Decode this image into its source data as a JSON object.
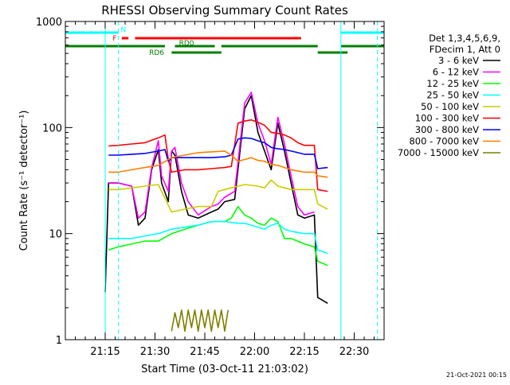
{
  "chart_data": {
    "type": "line",
    "title": "RHESSI Observing Summary Count Rates",
    "xlabel": "Start Time (03-Oct-11 21:03:02)",
    "ylabel": "Count Rate (s⁻¹ detector⁻¹)",
    "y_scale": "log",
    "ylim": [
      1,
      1000
    ],
    "xlim_minutes": [
      0,
      96
    ],
    "y_tick_labels": [
      "1",
      "10",
      "100",
      "1000"
    ],
    "x_ticks": [
      {
        "label": "21:15",
        "min": 12
      },
      {
        "label": "21:30",
        "min": 27
      },
      {
        "label": "21:45",
        "min": 42
      },
      {
        "label": "22:00",
        "min": 57
      },
      {
        "label": "22:15",
        "min": 72
      },
      {
        "label": "22:30",
        "min": 87
      }
    ],
    "legend_header": [
      "Det 1,3,4,5,6,9,",
      "FDecim 1, Att 0"
    ],
    "footer_date": "21-Oct-2021 00:15",
    "night_boundaries_min": [
      12,
      83
    ],
    "saa_boundaries_min": [
      16,
      94
    ],
    "flag_bars": [
      {
        "label": "N",
        "color": "#00ffff",
        "segments": [
          [
            0,
            16
          ],
          [
            83,
            96
          ]
        ]
      },
      {
        "label": "F",
        "color": "#ff0000",
        "segments": [
          [
            17,
            19
          ],
          [
            21,
            71
          ]
        ]
      },
      {
        "label": "RD0",
        "color": "#007f00",
        "segments": [
          [
            0,
            30
          ],
          [
            33,
            45
          ],
          [
            47,
            76
          ],
          [
            83,
            96
          ]
        ]
      },
      {
        "label": "RD6",
        "color": "#007f00",
        "segments": [
          [
            32,
            47
          ],
          [
            76,
            85
          ]
        ]
      }
    ],
    "series": [
      {
        "name": "3 - 6 keV",
        "color": "#000000",
        "points": [
          [
            12,
            2.8
          ],
          [
            13,
            30
          ],
          [
            16,
            30
          ],
          [
            20,
            28
          ],
          [
            22,
            12
          ],
          [
            24,
            14
          ],
          [
            26,
            40
          ],
          [
            28,
            62
          ],
          [
            29,
            30
          ],
          [
            31,
            20
          ],
          [
            32,
            60
          ],
          [
            33,
            55
          ],
          [
            35,
            25
          ],
          [
            37,
            15
          ],
          [
            40,
            14
          ],
          [
            44,
            16
          ],
          [
            46,
            17
          ],
          [
            48,
            20
          ],
          [
            51,
            21
          ],
          [
            54,
            150
          ],
          [
            56,
            200
          ],
          [
            58,
            90
          ],
          [
            60,
            60
          ],
          [
            62,
            40
          ],
          [
            64,
            110
          ],
          [
            66,
            60
          ],
          [
            68,
            30
          ],
          [
            70,
            15
          ],
          [
            72,
            14
          ],
          [
            75,
            15
          ],
          [
            76,
            2.5
          ],
          [
            79,
            2.2
          ]
        ]
      },
      {
        "name": "6 - 12 keV",
        "color": "#ff00ff",
        "points": [
          [
            13,
            30
          ],
          [
            16,
            30
          ],
          [
            20,
            28
          ],
          [
            22,
            14
          ],
          [
            24,
            16
          ],
          [
            26,
            42
          ],
          [
            28,
            75
          ],
          [
            29,
            35
          ],
          [
            31,
            25
          ],
          [
            32,
            60
          ],
          [
            33,
            65
          ],
          [
            35,
            30
          ],
          [
            37,
            20
          ],
          [
            40,
            15
          ],
          [
            44,
            18
          ],
          [
            46,
            19
          ],
          [
            48,
            22
          ],
          [
            51,
            25
          ],
          [
            54,
            170
          ],
          [
            56,
            215
          ],
          [
            58,
            110
          ],
          [
            60,
            75
          ],
          [
            62,
            45
          ],
          [
            64,
            125
          ],
          [
            66,
            70
          ],
          [
            68,
            35
          ],
          [
            70,
            18
          ],
          [
            72,
            15
          ],
          [
            75,
            16
          ]
        ]
      },
      {
        "name": "12 - 25 keV",
        "color": "#00ff00",
        "points": [
          [
            13,
            7
          ],
          [
            16,
            7.5
          ],
          [
            20,
            8
          ],
          [
            24,
            8.5
          ],
          [
            28,
            8.5
          ],
          [
            32,
            10
          ],
          [
            36,
            11
          ],
          [
            40,
            12
          ],
          [
            44,
            13
          ],
          [
            48,
            13
          ],
          [
            50,
            14
          ],
          [
            52,
            18
          ],
          [
            54,
            15
          ],
          [
            56,
            14
          ],
          [
            58,
            12.5
          ],
          [
            60,
            12
          ],
          [
            62,
            14
          ],
          [
            64,
            13
          ],
          [
            66,
            9
          ],
          [
            68,
            9
          ],
          [
            72,
            8
          ],
          [
            75,
            7.5
          ],
          [
            76,
            5.5
          ],
          [
            79,
            5
          ]
        ]
      },
      {
        "name": "25 - 50 keV",
        "color": "#00ffff",
        "points": [
          [
            13,
            9
          ],
          [
            16,
            9
          ],
          [
            20,
            9
          ],
          [
            24,
            9.5
          ],
          [
            28,
            10
          ],
          [
            32,
            11
          ],
          [
            36,
            11.5
          ],
          [
            40,
            12
          ],
          [
            44,
            13
          ],
          [
            48,
            13
          ],
          [
            52,
            12.5
          ],
          [
            54,
            12.5
          ],
          [
            56,
            12
          ],
          [
            58,
            11.5
          ],
          [
            60,
            11
          ],
          [
            62,
            12
          ],
          [
            64,
            12.5
          ],
          [
            66,
            11
          ],
          [
            68,
            10.5
          ],
          [
            72,
            10
          ],
          [
            75,
            10
          ],
          [
            76,
            7
          ],
          [
            79,
            6.5
          ]
        ]
      },
      {
        "name": "50 - 100 keV",
        "color": "#cccc00",
        "points": [
          [
            13,
            26
          ],
          [
            16,
            26
          ],
          [
            20,
            27
          ],
          [
            24,
            28
          ],
          [
            28,
            29
          ],
          [
            32,
            16
          ],
          [
            36,
            17
          ],
          [
            40,
            18
          ],
          [
            44,
            18
          ],
          [
            46,
            25
          ],
          [
            48,
            26
          ],
          [
            50,
            27
          ],
          [
            52,
            28
          ],
          [
            54,
            29
          ],
          [
            58,
            28
          ],
          [
            60,
            27
          ],
          [
            62,
            32
          ],
          [
            64,
            28
          ],
          [
            66,
            27
          ],
          [
            68,
            26
          ],
          [
            72,
            26
          ],
          [
            75,
            26
          ],
          [
            76,
            19
          ],
          [
            79,
            17
          ]
        ]
      },
      {
        "name": "100 - 300 keV",
        "color": "#ff0000",
        "points": [
          [
            13,
            67
          ],
          [
            16,
            68
          ],
          [
            20,
            70
          ],
          [
            24,
            72
          ],
          [
            28,
            80
          ],
          [
            30,
            85
          ],
          [
            31,
            50
          ],
          [
            32,
            38
          ],
          [
            36,
            40
          ],
          [
            40,
            40
          ],
          [
            44,
            41
          ],
          [
            48,
            42
          ],
          [
            50,
            43
          ],
          [
            52,
            110
          ],
          [
            54,
            115
          ],
          [
            56,
            118
          ],
          [
            58,
            112
          ],
          [
            60,
            105
          ],
          [
            62,
            90
          ],
          [
            64,
            88
          ],
          [
            66,
            85
          ],
          [
            68,
            80
          ],
          [
            70,
            72
          ],
          [
            72,
            68
          ],
          [
            75,
            68
          ],
          [
            76,
            26
          ],
          [
            79,
            25
          ]
        ]
      },
      {
        "name": "300 - 800 keV",
        "color": "#0000ff",
        "points": [
          [
            13,
            55
          ],
          [
            16,
            55
          ],
          [
            20,
            56
          ],
          [
            24,
            57
          ],
          [
            28,
            60
          ],
          [
            30,
            62
          ],
          [
            31,
            48
          ],
          [
            32,
            52
          ],
          [
            36,
            52
          ],
          [
            40,
            52
          ],
          [
            44,
            52
          ],
          [
            48,
            53
          ],
          [
            50,
            55
          ],
          [
            52,
            78
          ],
          [
            54,
            80
          ],
          [
            56,
            79
          ],
          [
            58,
            75
          ],
          [
            60,
            72
          ],
          [
            62,
            65
          ],
          [
            64,
            63
          ],
          [
            66,
            62
          ],
          [
            68,
            60
          ],
          [
            70,
            58
          ],
          [
            72,
            56
          ],
          [
            75,
            56
          ],
          [
            76,
            41
          ],
          [
            79,
            42
          ]
        ]
      },
      {
        "name": "800 - 7000 keV",
        "color": "#ff7f00",
        "points": [
          [
            13,
            38
          ],
          [
            16,
            38
          ],
          [
            20,
            40
          ],
          [
            24,
            42
          ],
          [
            28,
            44
          ],
          [
            32,
            52
          ],
          [
            36,
            55
          ],
          [
            40,
            58
          ],
          [
            44,
            59
          ],
          [
            48,
            60
          ],
          [
            50,
            55
          ],
          [
            52,
            48
          ],
          [
            54,
            50
          ],
          [
            56,
            52
          ],
          [
            58,
            49
          ],
          [
            60,
            48
          ],
          [
            62,
            45
          ],
          [
            64,
            44
          ],
          [
            66,
            42
          ],
          [
            68,
            40
          ],
          [
            70,
            39
          ],
          [
            72,
            38
          ],
          [
            75,
            38
          ],
          [
            76,
            35
          ],
          [
            79,
            34
          ]
        ]
      },
      {
        "name": "7000 - 15000 keV",
        "color": "#7f7f00",
        "points": [
          [
            32,
            1.2
          ],
          [
            33,
            1.8
          ],
          [
            34,
            1.3
          ],
          [
            35,
            1.9
          ],
          [
            36,
            1.2
          ],
          [
            37,
            1.9
          ],
          [
            38,
            1.3
          ],
          [
            39,
            1.9
          ],
          [
            40,
            1.2
          ],
          [
            41,
            1.9
          ],
          [
            42,
            1.3
          ],
          [
            43,
            1.9
          ],
          [
            44,
            1.2
          ],
          [
            45,
            1.9
          ],
          [
            46,
            1.3
          ],
          [
            47,
            1.9
          ],
          [
            48,
            1.2
          ],
          [
            49,
            1.9
          ]
        ]
      }
    ]
  }
}
